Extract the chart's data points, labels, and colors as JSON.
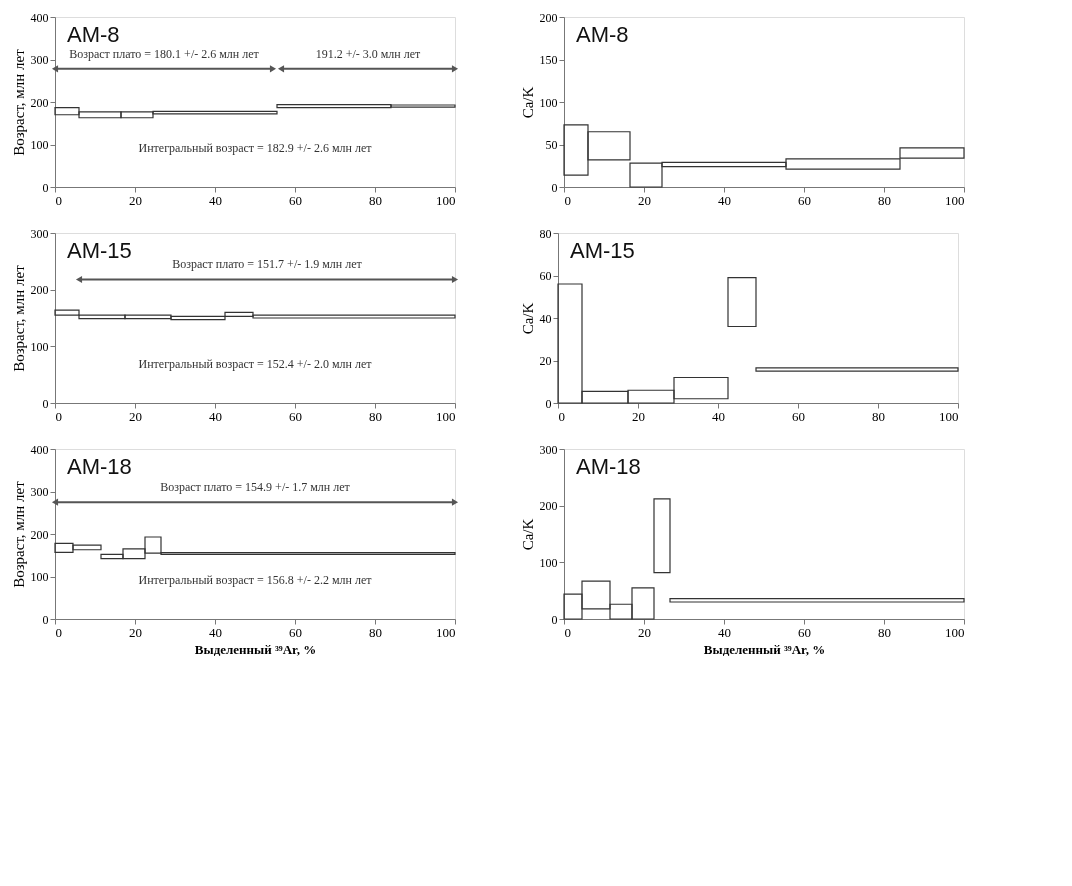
{
  "chart_data": [
    {
      "type": "histogram",
      "title": "AM-8",
      "ylabel": "Возраст, млн лет",
      "bins": [
        0,
        6,
        16.5,
        24.5,
        55.5,
        84,
        100
      ],
      "base": [
        170,
        163,
        163,
        172,
        187,
        188
      ],
      "values": [
        17,
        14,
        14,
        6,
        7,
        5
      ],
      "color": "#333333",
      "xlim": [
        0,
        100
      ],
      "xticks": [
        0,
        20,
        40,
        60,
        80,
        100
      ],
      "ylim": [
        0,
        400
      ],
      "yticks": [
        0,
        100,
        200,
        300,
        400
      ],
      "grid": false,
      "series": [
        {
          "type": "line",
          "x": [
            0,
            54.5
          ],
          "values": [
            278,
            278
          ],
          "color": "#555555",
          "marker": "triangle"
        },
        {
          "type": "line",
          "x": [
            56.5,
            100
          ],
          "values": [
            278,
            278
          ],
          "color": "#555555",
          "marker": "triangle"
        }
      ],
      "annotations": [
        "Возраст плато = 180.1 +/- 2.6 млн лет",
        "191.2 +/- 3.0 млн лет",
        "Интегральный возраст = 182.9 +/- 2.6 млн лет"
      ]
    },
    {
      "type": "histogram",
      "title": "AM-8",
      "ylabel": "Ca/K",
      "bins": [
        0,
        6,
        16.5,
        24.5,
        55.5,
        84,
        100
      ],
      "base": [
        14,
        32,
        0,
        24,
        21,
        34
      ],
      "values": [
        59,
        33,
        28,
        5,
        12,
        12
      ],
      "color": "#333333",
      "xlim": [
        0,
        100
      ],
      "xticks": [
        0,
        20,
        40,
        60,
        80,
        100
      ],
      "ylim": [
        0,
        200
      ],
      "yticks": [
        0,
        50,
        100,
        150,
        200
      ],
      "grid": false
    },
    {
      "type": "histogram",
      "title": "AM-15",
      "ylabel": "Возраст, млн лет",
      "bins": [
        0,
        6,
        17.5,
        29,
        42.5,
        49.5,
        100
      ],
      "base": [
        155,
        149,
        149,
        147,
        153,
        150
      ],
      "values": [
        9,
        6,
        6,
        6,
        7,
        5
      ],
      "color": "#333333",
      "xlim": [
        0,
        100
      ],
      "xticks": [
        0,
        20,
        40,
        60,
        80,
        100
      ],
      "ylim": [
        0,
        300
      ],
      "yticks": [
        0,
        100,
        200,
        300
      ],
      "grid": false,
      "series": [
        {
          "type": "line",
          "x": [
            6,
            100
          ],
          "values": [
            218,
            218
          ],
          "color": "#555555",
          "marker": "triangle"
        }
      ],
      "annotations": [
        "Возраст плато = 151.7 +/- 1.9 млн лет",
        "Интегральный возраст = 152.4 +/- 2.0 млн лет"
      ]
    },
    {
      "type": "histogram",
      "title": "AM-15",
      "ylabel": "Ca/K",
      "bins": [
        0,
        6,
        17.5,
        29,
        42.5,
        49.5,
        100
      ],
      "base": [
        0,
        0,
        0,
        2,
        36,
        15
      ],
      "values": [
        56,
        5.5,
        6,
        10,
        23,
        1.5
      ],
      "color": "#333333",
      "xlim": [
        0,
        100
      ],
      "xticks": [
        0,
        20,
        40,
        60,
        80,
        100
      ],
      "ylim": [
        0,
        80
      ],
      "yticks": [
        0,
        20,
        40,
        60,
        80
      ],
      "grid": false
    },
    {
      "type": "histogram",
      "title": "AM-18",
      "ylabel": "Возраст, млн лет",
      "xlabel": "Выделенный ³⁹Ar, %",
      "bins": [
        0,
        4.5,
        11.5,
        17,
        22.5,
        26.5,
        100
      ],
      "base": [
        157,
        163,
        142,
        142,
        155,
        152
      ],
      "values": [
        21,
        11,
        10,
        23,
        38,
        4
      ],
      "color": "#333333",
      "xlim": [
        0,
        100
      ],
      "xticks": [
        0,
        20,
        40,
        60,
        80,
        100
      ],
      "ylim": [
        0,
        400
      ],
      "yticks": [
        0,
        100,
        200,
        300,
        400
      ],
      "grid": false,
      "series": [
        {
          "type": "line",
          "x": [
            0,
            100
          ],
          "values": [
            275,
            275
          ],
          "color": "#555555",
          "marker": "triangle"
        }
      ],
      "annotations": [
        "Возраст плато = 154.9 +/- 1.7 млн лет",
        "Интегральный возраст = 156.8 +/- 2.2 млн лет"
      ]
    },
    {
      "type": "histogram",
      "title": "AM-18",
      "ylabel": "Ca/K",
      "xlabel": "Выделенный ³⁹Ar, %",
      "bins": [
        0,
        4.5,
        11.5,
        17,
        22.5,
        26.5,
        100
      ],
      "base": [
        0,
        18,
        0,
        0,
        82,
        30
      ],
      "values": [
        44,
        49,
        26,
        55,
        130,
        6
      ],
      "color": "#333333",
      "xlim": [
        0,
        100
      ],
      "xticks": [
        0,
        20,
        40,
        60,
        80,
        100
      ],
      "ylim": [
        0,
        300
      ],
      "yticks": [
        0,
        100,
        200,
        300
      ],
      "grid": false
    }
  ]
}
